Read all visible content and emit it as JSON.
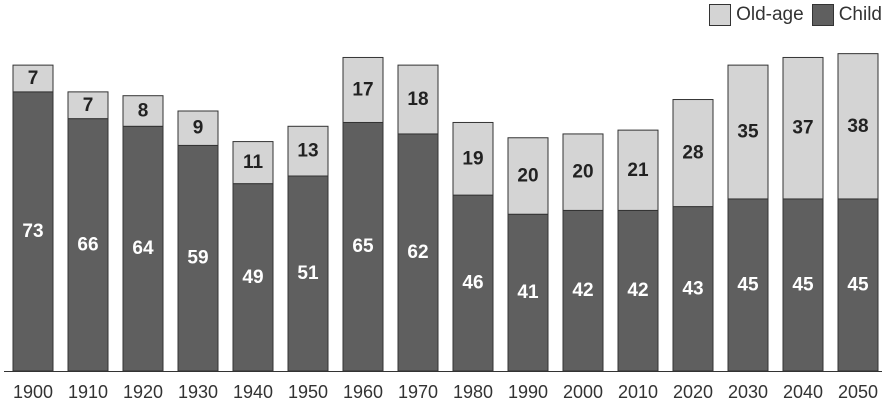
{
  "chart_data": {
    "type": "bar",
    "stacked": true,
    "categories": [
      "1900",
      "1910",
      "1920",
      "1930",
      "1940",
      "1950",
      "1960",
      "1970",
      "1980",
      "1990",
      "2000",
      "2010",
      "2020",
      "2030",
      "2040",
      "2050"
    ],
    "series": [
      {
        "name": "Child",
        "values": [
          73,
          66,
          64,
          59,
          49,
          51,
          65,
          62,
          46,
          41,
          42,
          42,
          43,
          45,
          45,
          45
        ],
        "color": "#5f5f5f"
      },
      {
        "name": "Old-age",
        "values": [
          7,
          7,
          8,
          9,
          11,
          13,
          17,
          18,
          19,
          20,
          20,
          21,
          28,
          35,
          37,
          38
        ],
        "color": "#d4d4d4"
      }
    ],
    "legend": [
      {
        "label": "Old-age",
        "color": "#d4d4d4"
      },
      {
        "label": "Child",
        "color": "#5f5f5f"
      }
    ],
    "legend_position": "top-right",
    "ylim": [
      0,
      85
    ],
    "grid": false,
    "title": "",
    "xlabel": "",
    "ylabel": ""
  }
}
